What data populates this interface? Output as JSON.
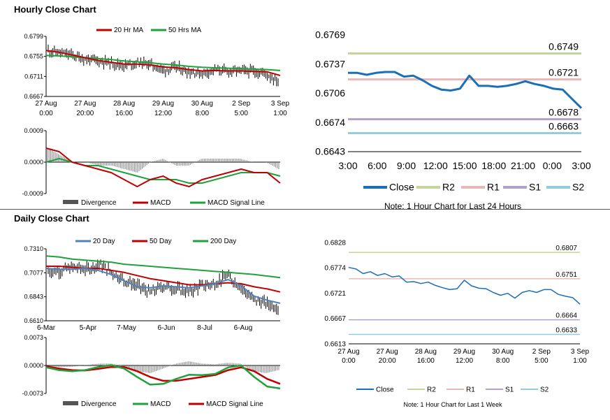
{
  "sections": {
    "hourly_title": "Hourly Close Chart",
    "daily_title": "Daily Close Chart"
  },
  "colors": {
    "red": "#c00000",
    "green": "#1fa23c",
    "blue": "#4f81bd",
    "close_blue": "#1b6fb5",
    "r2": "#c3d69b",
    "r1": "#e6b9b8",
    "s1": "#b3a2c7",
    "s2": "#93cddd",
    "black": "#000000",
    "gray": "#808080"
  },
  "chart_data": [
    {
      "id": "hourly-price",
      "type": "line",
      "legend": [
        "20 Hr MA",
        "50 Hrs MA"
      ],
      "yticks": [
        "0.6799",
        "0.6755",
        "0.6711",
        "0.6667"
      ],
      "ylim": [
        0.6667,
        0.6799
      ],
      "xticks": [
        [
          "27 Aug",
          "0:00"
        ],
        [
          "27 Aug",
          "20:00"
        ],
        [
          "28 Aug",
          "16:00"
        ],
        [
          "29 Aug",
          "12:00"
        ],
        [
          "30 Aug",
          "8:00"
        ],
        [
          "2 Sep",
          "5:00"
        ],
        [
          "3 Sep",
          "1:00"
        ]
      ],
      "price_anchors": [
        0.6768,
        0.6762,
        0.6757,
        0.6748,
        0.6745,
        0.674,
        0.6735,
        0.6742,
        0.6738,
        0.6725,
        0.673,
        0.6722,
        0.6718,
        0.6726,
        0.6722,
        0.6724,
        0.6722,
        0.6718,
        0.67
      ],
      "ma20": [
        0.6768,
        0.6764,
        0.6758,
        0.6752,
        0.6746,
        0.6742,
        0.6738,
        0.6738,
        0.6736,
        0.6732,
        0.673,
        0.6726,
        0.6723,
        0.6724,
        0.6723,
        0.6723,
        0.6722,
        0.6721,
        0.6713
      ],
      "ma50": [
        0.6757,
        0.6756,
        0.6754,
        0.6752,
        0.675,
        0.6748,
        0.6745,
        0.6743,
        0.6741,
        0.6738,
        0.6736,
        0.6733,
        0.6731,
        0.673,
        0.6729,
        0.6728,
        0.6727,
        0.6726,
        0.6724
      ]
    },
    {
      "id": "hourly-macd",
      "type": "line",
      "legend": [
        "Divergence",
        "MACD",
        "MACD Signal Line"
      ],
      "yticks": [
        "0.0009",
        "0.0000",
        "-0.0009"
      ],
      "ylim": [
        -0.0009,
        0.0009
      ],
      "macd": [
        0.0004,
        0.0003,
        0.0,
        -0.0001,
        -0.0002,
        -0.0003,
        -0.0005,
        -0.0007,
        -0.0005,
        -0.0004,
        -0.0006,
        -0.0007,
        -0.0005,
        -0.0004,
        -0.0003,
        -0.0002,
        -0.0003,
        -0.0003,
        -0.0006
      ],
      "signal": [
        0.0,
        0.0001,
        0.0,
        -0.0001,
        -0.0001,
        -0.0002,
        -0.0003,
        -0.0004,
        -0.0005,
        -0.0005,
        -0.0005,
        -0.0006,
        -0.0006,
        -0.0005,
        -0.0004,
        -0.0003,
        -0.0003,
        -0.0003,
        -0.0004
      ]
    },
    {
      "id": "hourly-pivots",
      "type": "line",
      "yticks": [
        "0.6769",
        "0.6737",
        "0.6706",
        "0.6674",
        "0.6643"
      ],
      "ylim": [
        0.6643,
        0.6769
      ],
      "xticks": [
        "3:00",
        "6:00",
        "9:00",
        "12:00",
        "15:00",
        "18:00",
        "21:00",
        "0:00",
        "3:00"
      ],
      "close": [
        0.6728,
        0.6728,
        0.6726,
        0.6728,
        0.6729,
        0.6729,
        0.6724,
        0.6725,
        0.672,
        0.6714,
        0.671,
        0.6709,
        0.6711,
        0.6725,
        0.6714,
        0.6714,
        0.6713,
        0.6714,
        0.6716,
        0.6719,
        0.6716,
        0.6714,
        0.6711,
        0.671,
        0.67,
        0.669
      ],
      "levels": {
        "R2": 0.6749,
        "R1": 0.6721,
        "S1": 0.6678,
        "S2": 0.6663
      },
      "level_labels": {
        "R2": "0.6749",
        "R1": "0.6721",
        "S1": "0.6678",
        "S2": "0.6663"
      },
      "legend": [
        "Close",
        "R2",
        "R1",
        "S1",
        "S2"
      ],
      "note": "Note: 1 Hour Chart for Last 24 Hours"
    },
    {
      "id": "daily-price",
      "type": "line",
      "legend": [
        "20 Day",
        "50 Day",
        "200 Day"
      ],
      "yticks": [
        "0.7310",
        "0.7077",
        "0.6843",
        "0.6610"
      ],
      "ylim": [
        0.661,
        0.731
      ],
      "xticks": [
        "6-Mar",
        "5-Apr",
        "7-May",
        "6-Jun",
        "8-Jul",
        "6-Aug"
      ],
      "price_anchors": [
        0.709,
        0.71,
        0.713,
        0.711,
        0.716,
        0.708,
        0.7,
        0.695,
        0.688,
        0.695,
        0.692,
        0.689,
        0.695,
        0.697,
        0.705,
        0.695,
        0.682,
        0.678,
        0.674
      ],
      "d20": [
        0.712,
        0.711,
        0.711,
        0.712,
        0.71,
        0.706,
        0.7,
        0.694,
        0.693,
        0.695,
        0.694,
        0.693,
        0.695,
        0.697,
        0.701,
        0.695,
        0.685,
        0.681,
        0.678
      ],
      "d50": [
        0.714,
        0.714,
        0.713,
        0.712,
        0.712,
        0.71,
        0.708,
        0.705,
        0.702,
        0.7,
        0.698,
        0.696,
        0.696,
        0.697,
        0.698,
        0.697,
        0.694,
        0.692,
        0.689
      ],
      "d200": [
        0.724,
        0.723,
        0.721,
        0.72,
        0.719,
        0.718,
        0.716,
        0.715,
        0.714,
        0.713,
        0.712,
        0.711,
        0.71,
        0.709,
        0.708,
        0.707,
        0.706,
        0.7045,
        0.703
      ]
    },
    {
      "id": "daily-macd",
      "type": "line",
      "legend": [
        "Divergence",
        "MACD",
        "MACD Signal Line"
      ],
      "yticks": [
        "0.0073",
        "0.0000",
        "-0.0073"
      ],
      "ylim": [
        -0.0073,
        0.0073
      ],
      "macd": [
        -0.0005,
        -0.0012,
        -0.0015,
        -0.0012,
        -0.0004,
        0.0001,
        -0.0008,
        -0.003,
        -0.005,
        -0.0048,
        -0.0035,
        -0.0024,
        -0.0025,
        -0.0022,
        -0.0005,
        0.0,
        -0.003,
        -0.0055,
        -0.006
      ],
      "signal": [
        -0.0002,
        -0.0008,
        -0.0012,
        -0.0013,
        -0.0009,
        -0.0004,
        -0.0004,
        -0.0015,
        -0.003,
        -0.004,
        -0.004,
        -0.0035,
        -0.003,
        -0.0025,
        -0.0012,
        -0.0005,
        -0.0015,
        -0.0035,
        -0.0048
      ]
    },
    {
      "id": "daily-pivots",
      "type": "line",
      "yticks": [
        "0.6828",
        "0.6774",
        "0.6721",
        "0.6667",
        "0.6613"
      ],
      "ylim": [
        0.6613,
        0.6828
      ],
      "xticks": [
        [
          "27 Aug",
          "0:00"
        ],
        [
          "27 Aug",
          "20:00"
        ],
        [
          "28 Aug",
          "16:00"
        ],
        [
          "29 Aug",
          "12:00"
        ],
        [
          "30 Aug",
          "8:00"
        ],
        [
          "2 Sep",
          "5:00"
        ],
        [
          "3 Sep",
          "1:00"
        ]
      ],
      "close": [
        0.6775,
        0.6772,
        0.6762,
        0.6766,
        0.6758,
        0.6762,
        0.6755,
        0.6757,
        0.6744,
        0.6745,
        0.6741,
        0.6744,
        0.6737,
        0.6732,
        0.6728,
        0.673,
        0.6748,
        0.6736,
        0.6731,
        0.673,
        0.6722,
        0.6716,
        0.672,
        0.671,
        0.6722,
        0.6726,
        0.6722,
        0.6728,
        0.6728,
        0.6718,
        0.6714,
        0.6711,
        0.6697
      ],
      "levels": {
        "R2": 0.6807,
        "R1": 0.6751,
        "S1": 0.6664,
        "S2": 0.6633
      },
      "level_labels": {
        "R2": "0.6807",
        "R1": "0.6751",
        "S1": "0.6664",
        "S2": "0.6633"
      },
      "legend": [
        "Close",
        "R2",
        "R1",
        "S1",
        "S2"
      ],
      "note": "Note: 1 Hour Chart for Last 1 Week"
    }
  ]
}
